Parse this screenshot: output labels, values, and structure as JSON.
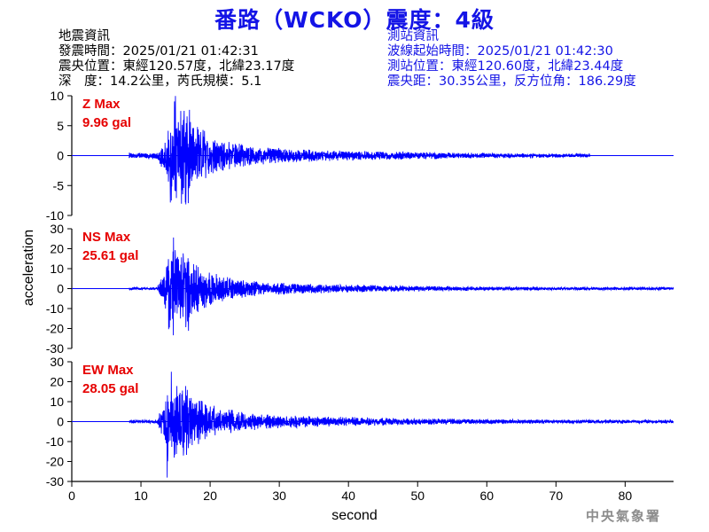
{
  "header": {
    "title": "番路（WCKO）震度：4級"
  },
  "quake_info": {
    "heading": "地震資訊",
    "origin_time": "發震時間：2025/01/21 01:42:31",
    "epicenter": "震央位置：東經120.57度，北緯23.17度",
    "depth_magnitude": "深　度：14.2公里，芮氏規模：5.1"
  },
  "station_info": {
    "heading": "測站資訊",
    "wave_start": "波線起始時間：2025/01/21 01:42:30",
    "location": "測站位置：東經120.60度，北緯23.44度",
    "distance_azimuth": "震央距：30.35公里，反方位角：186.29度"
  },
  "credit": "中央氣象署",
  "colors": {
    "title": "#1414e6",
    "trace": "#0000ff",
    "max_label": "#e60000"
  },
  "chart_data": {
    "type": "line",
    "xlabel": "second",
    "ylabel": "acceleration",
    "xlim": [
      0,
      87
    ],
    "xticks": [
      "0",
      "10",
      "20",
      "30",
      "40",
      "50",
      "60",
      "70",
      "80"
    ],
    "panels": [
      {
        "name": "Z",
        "max_label": "Z Max",
        "max_value": "9.96 gal",
        "ylim": [
          -10,
          10
        ],
        "yticks": [
          "10",
          "5",
          "0",
          "-5",
          "-10"
        ],
        "noise_start": 8.3,
        "trace_end": 75,
        "peak_time": 15,
        "peak_pos": 9.96,
        "peak_neg": -7.5,
        "coda_level": 0.9,
        "noise_level": 0.55
      },
      {
        "name": "NS",
        "max_label": "NS Max",
        "max_value": "25.61 gal",
        "ylim": [
          -30,
          30
        ],
        "yticks": [
          "30",
          "20",
          "10",
          "0",
          "-10",
          "-20",
          "-30"
        ],
        "noise_start": 8.3,
        "trace_end": 87,
        "peak_time": 14.7,
        "peak_pos": 25.61,
        "peak_neg": -19.5,
        "coda_level": 2.2,
        "noise_level": 0.8
      },
      {
        "name": "EW",
        "max_label": "EW Max",
        "max_value": "28.05 gal",
        "ylim": [
          -30,
          30
        ],
        "yticks": [
          "30",
          "20",
          "10",
          "0",
          "-10",
          "-20",
          "-30"
        ],
        "noise_start": 8.3,
        "trace_end": 87,
        "peak_time": 14.4,
        "peak_pos": 25.0,
        "peak_neg": -28.05,
        "coda_level": 2.6,
        "noise_level": 0.9
      }
    ]
  }
}
